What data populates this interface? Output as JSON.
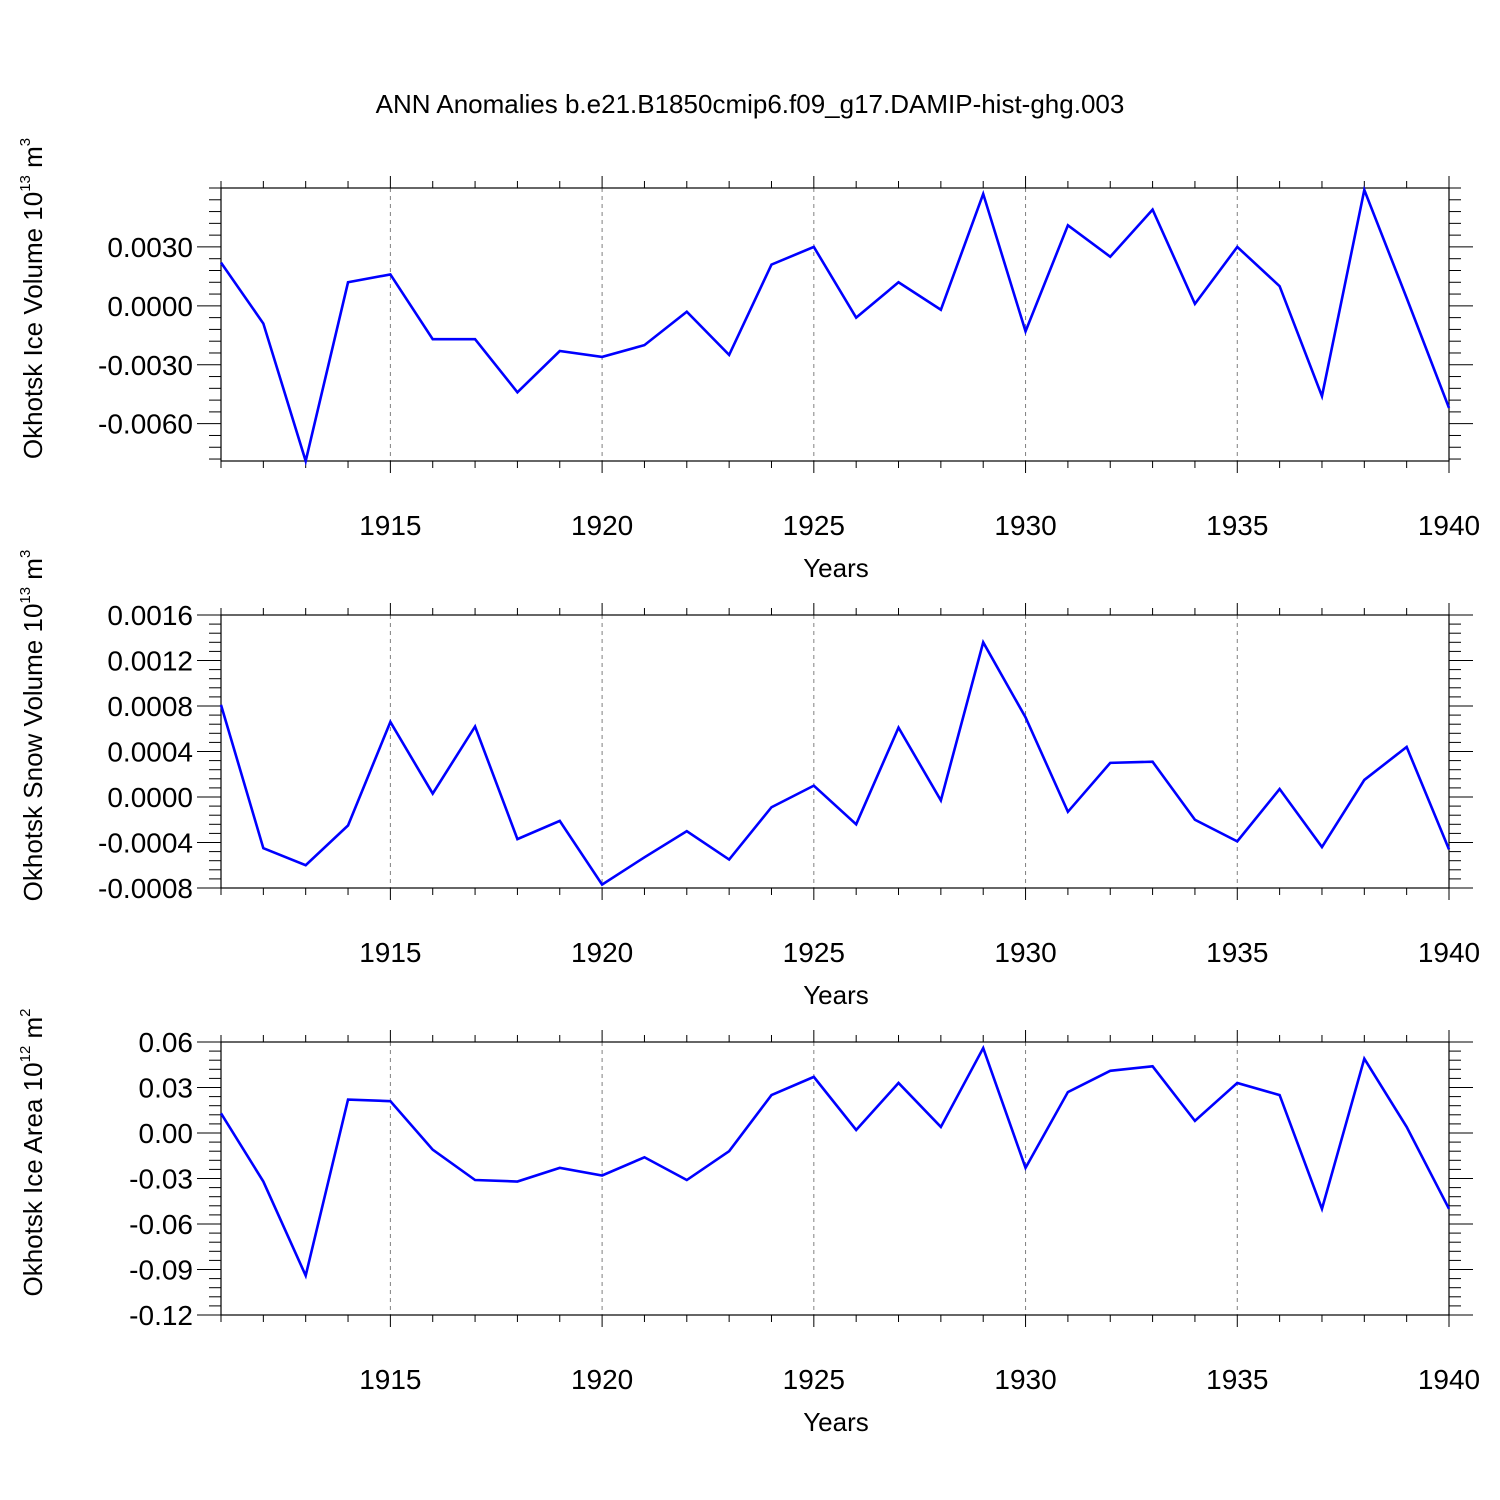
{
  "title": "ANN Anomalies b.e21.B1850cmip6.f09_g17.DAMIP-hist-ghg.003",
  "colors": {
    "line": "#0000ff",
    "axis": "#000000",
    "grid": "#808080",
    "background": "#ffffff"
  },
  "chart_data": [
    {
      "type": "line",
      "ylabel": {
        "text": "Okhotsk Ice Volume 10",
        "sup": "13",
        "unit": " m",
        "unit_sup": "3"
      },
      "xlabel": "Years",
      "xlim": [
        1911,
        1940
      ],
      "xticks": [
        "1915",
        "1920",
        "1925",
        "1930",
        "1935",
        "1940"
      ],
      "ylim": [
        -0.0079,
        0.006
      ],
      "yticks": [
        "0.0030",
        "0.0000",
        "-0.0030",
        "-0.0060"
      ],
      "ytick_values": [
        0.003,
        0.0,
        -0.003,
        -0.006
      ],
      "grid": "vertical dashed at major x ticks",
      "series": [
        {
          "name": "Okhotsk Ice Volume",
          "x": [
            1911,
            1912,
            1913,
            1914,
            1915,
            1916,
            1917,
            1918,
            1919,
            1920,
            1921,
            1922,
            1923,
            1924,
            1925,
            1926,
            1927,
            1928,
            1929,
            1930,
            1931,
            1932,
            1933,
            1934,
            1935,
            1936,
            1937,
            1938,
            1939,
            1940
          ],
          "values": [
            0.0022,
            -0.0009,
            -0.0079,
            0.0012,
            0.0016,
            -0.0017,
            -0.0017,
            -0.0044,
            -0.0023,
            -0.0026,
            -0.002,
            -0.0003,
            -0.0025,
            0.0021,
            0.003,
            -0.0006,
            0.0012,
            -0.0002,
            0.0057,
            -0.0013,
            0.0041,
            0.0025,
            0.0049,
            0.0001,
            0.003,
            0.001,
            -0.0046,
            0.0059,
            0.0004,
            -0.0052
          ]
        }
      ]
    },
    {
      "type": "line",
      "ylabel": {
        "text": "Okhotsk Snow Volume 10",
        "sup": "13",
        "unit": " m",
        "unit_sup": "3"
      },
      "xlabel": "Years",
      "xlim": [
        1911,
        1940
      ],
      "xticks": [
        "1915",
        "1920",
        "1925",
        "1930",
        "1935",
        "1940"
      ],
      "ylim": [
        -0.0008,
        0.0016
      ],
      "yticks": [
        "0.0016",
        "0.0012",
        "0.0008",
        "0.0004",
        "0.0000",
        "-0.0004",
        "-0.0008"
      ],
      "ytick_values": [
        0.0016,
        0.0012,
        0.0008,
        0.0004,
        0.0,
        -0.0004,
        -0.0008
      ],
      "grid": "vertical dashed at major x ticks",
      "series": [
        {
          "name": "Okhotsk Snow Volume",
          "x": [
            1911,
            1912,
            1913,
            1914,
            1915,
            1916,
            1917,
            1918,
            1919,
            1920,
            1921,
            1922,
            1923,
            1924,
            1925,
            1926,
            1927,
            1928,
            1929,
            1930,
            1931,
            1932,
            1933,
            1934,
            1935,
            1936,
            1937,
            1938,
            1939,
            1940
          ],
          "values": [
            0.00081,
            -0.00045,
            -0.0006,
            -0.00025,
            0.00066,
            3e-05,
            0.00062,
            -0.00037,
            -0.00021,
            -0.00077,
            -0.00053,
            -0.0003,
            -0.00055,
            -9e-05,
            0.0001,
            -0.00024,
            0.00061,
            -3e-05,
            0.00136,
            0.0007,
            -0.00013,
            0.0003,
            0.00031,
            -0.0002,
            -0.00039,
            7e-05,
            -0.00044,
            0.00015,
            0.00044,
            -0.00046
          ]
        }
      ]
    },
    {
      "type": "line",
      "ylabel": {
        "text": "Okhotsk Ice Area 10",
        "sup": "12",
        "unit": " m",
        "unit_sup": "2"
      },
      "xlabel": "Years",
      "xlim": [
        1911,
        1940
      ],
      "xticks": [
        "1915",
        "1920",
        "1925",
        "1930",
        "1935",
        "1940"
      ],
      "ylim": [
        -0.12,
        0.06
      ],
      "yticks": [
        "0.06",
        "0.03",
        "0.00",
        "-0.03",
        "-0.06",
        "-0.09",
        "-0.12"
      ],
      "ytick_values": [
        0.06,
        0.03,
        0.0,
        -0.03,
        -0.06,
        -0.09,
        -0.12
      ],
      "grid": "vertical dashed at major x ticks",
      "series": [
        {
          "name": "Okhotsk Ice Area",
          "x": [
            1911,
            1912,
            1913,
            1914,
            1915,
            1916,
            1917,
            1918,
            1919,
            1920,
            1921,
            1922,
            1923,
            1924,
            1925,
            1926,
            1927,
            1928,
            1929,
            1930,
            1931,
            1932,
            1933,
            1934,
            1935,
            1936,
            1937,
            1938,
            1939,
            1940
          ],
          "values": [
            0.013,
            -0.032,
            -0.094,
            0.022,
            0.021,
            -0.011,
            -0.031,
            -0.032,
            -0.023,
            -0.028,
            -0.016,
            -0.031,
            -0.012,
            0.025,
            0.037,
            0.002,
            0.033,
            0.004,
            0.056,
            -0.023,
            0.027,
            0.041,
            0.044,
            0.008,
            0.033,
            0.025,
            -0.05,
            0.049,
            0.004,
            -0.05
          ]
        }
      ]
    }
  ]
}
